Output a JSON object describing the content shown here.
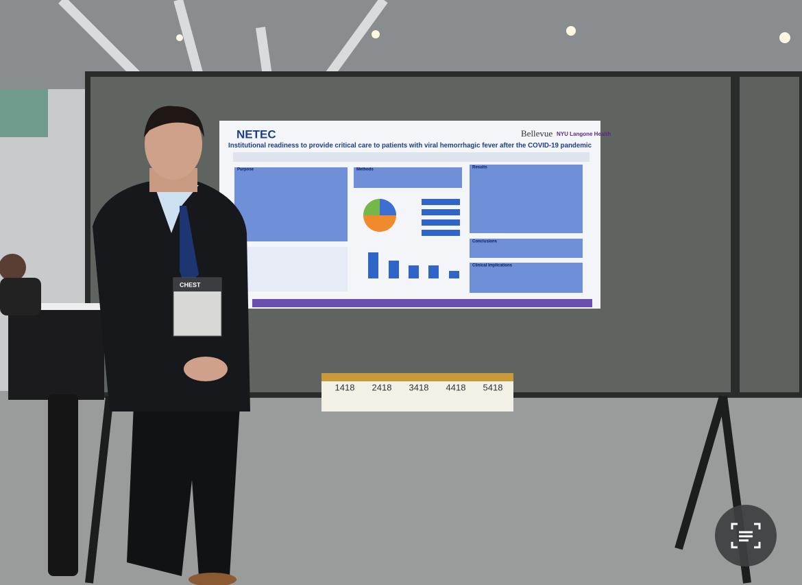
{
  "poster": {
    "logo": "NETEC",
    "title": "Institutional readiness to provide critical care to patients with viral hemorrhagic fever after the COVID-19 pandemic",
    "partners": [
      "Bellevue",
      "NYU Langone Health"
    ],
    "sections": [
      "Purpose",
      "Methods",
      "Results",
      "Conclusions",
      "Clinical Implications"
    ]
  },
  "badge": {
    "name": "CHEST"
  },
  "board_sign": {
    "numbers": [
      "1418",
      "2418",
      "3418",
      "4418",
      "5418"
    ]
  }
}
